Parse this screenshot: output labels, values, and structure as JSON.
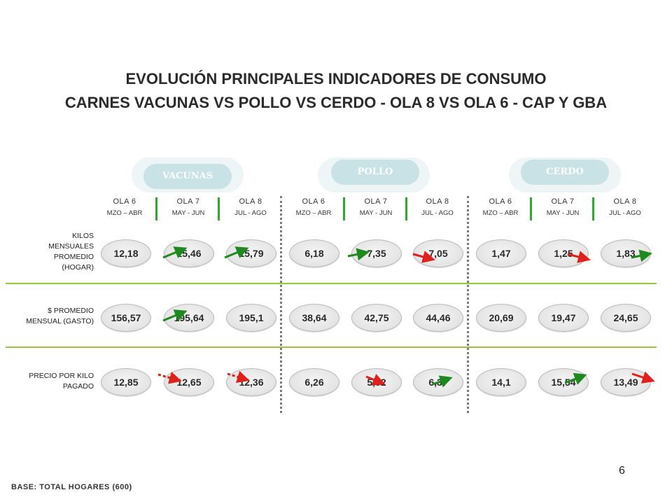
{
  "title_line1": "EVOLUCIÓN PRINCIPALES INDICADORES DE CONSUMO",
  "title_line2": "CARNES VACUNAS VS POLLO VS CERDO - OLA 8 VS OLA 6 - CAP Y GBA",
  "categories": [
    "VACUNAS",
    "POLLO",
    "CERDO"
  ],
  "waves": [
    {
      "ola": "OLA 6",
      "period": "MZO – ABR"
    },
    {
      "ola": "OLA 7",
      "period": "MAY - JUN"
    },
    {
      "ola": "OLA 8",
      "period": "JUL - AGO"
    }
  ],
  "rows": [
    {
      "label_lines": [
        "KILOS",
        "MENSUALES",
        "PROMEDIO",
        "(HOGAR)"
      ],
      "values": [
        "12,18",
        "15,46",
        "15,79",
        "6,18",
        "7,35",
        "7,05",
        "1,47",
        "1,25",
        "1,83"
      ]
    },
    {
      "label_lines": [
        "$ PROMEDIO",
        "MENSUAL  (GASTO)"
      ],
      "values": [
        "156,57",
        "195,64",
        "195,1",
        "38,64",
        "42,75",
        "44,46",
        "20,69",
        "19,47",
        "24,65"
      ]
    },
    {
      "label_lines": [
        "PRECIO POR KILO",
        "PAGADO"
      ],
      "values": [
        "12,85",
        "12,65",
        "12,36",
        "6,26",
        "5,82",
        "6,37",
        "14,1",
        "15,54",
        "13,49"
      ]
    }
  ],
  "trend_arrows": [
    [
      "up",
      "up",
      null,
      "up",
      "down",
      null,
      "down",
      "up",
      null
    ],
    [
      "up",
      null,
      null,
      null,
      null,
      null,
      null,
      null,
      null
    ],
    [
      "flat-down",
      "flat-down",
      null,
      "down",
      "up",
      null,
      "up",
      "down",
      null
    ]
  ],
  "colors": {
    "up": "#1e8a1e",
    "down": "#e0201a",
    "divider": "#94c83d",
    "pill": "#c8e2e5"
  },
  "footer": "BASE: TOTAL HOGARES (600)",
  "page_number": "6"
}
